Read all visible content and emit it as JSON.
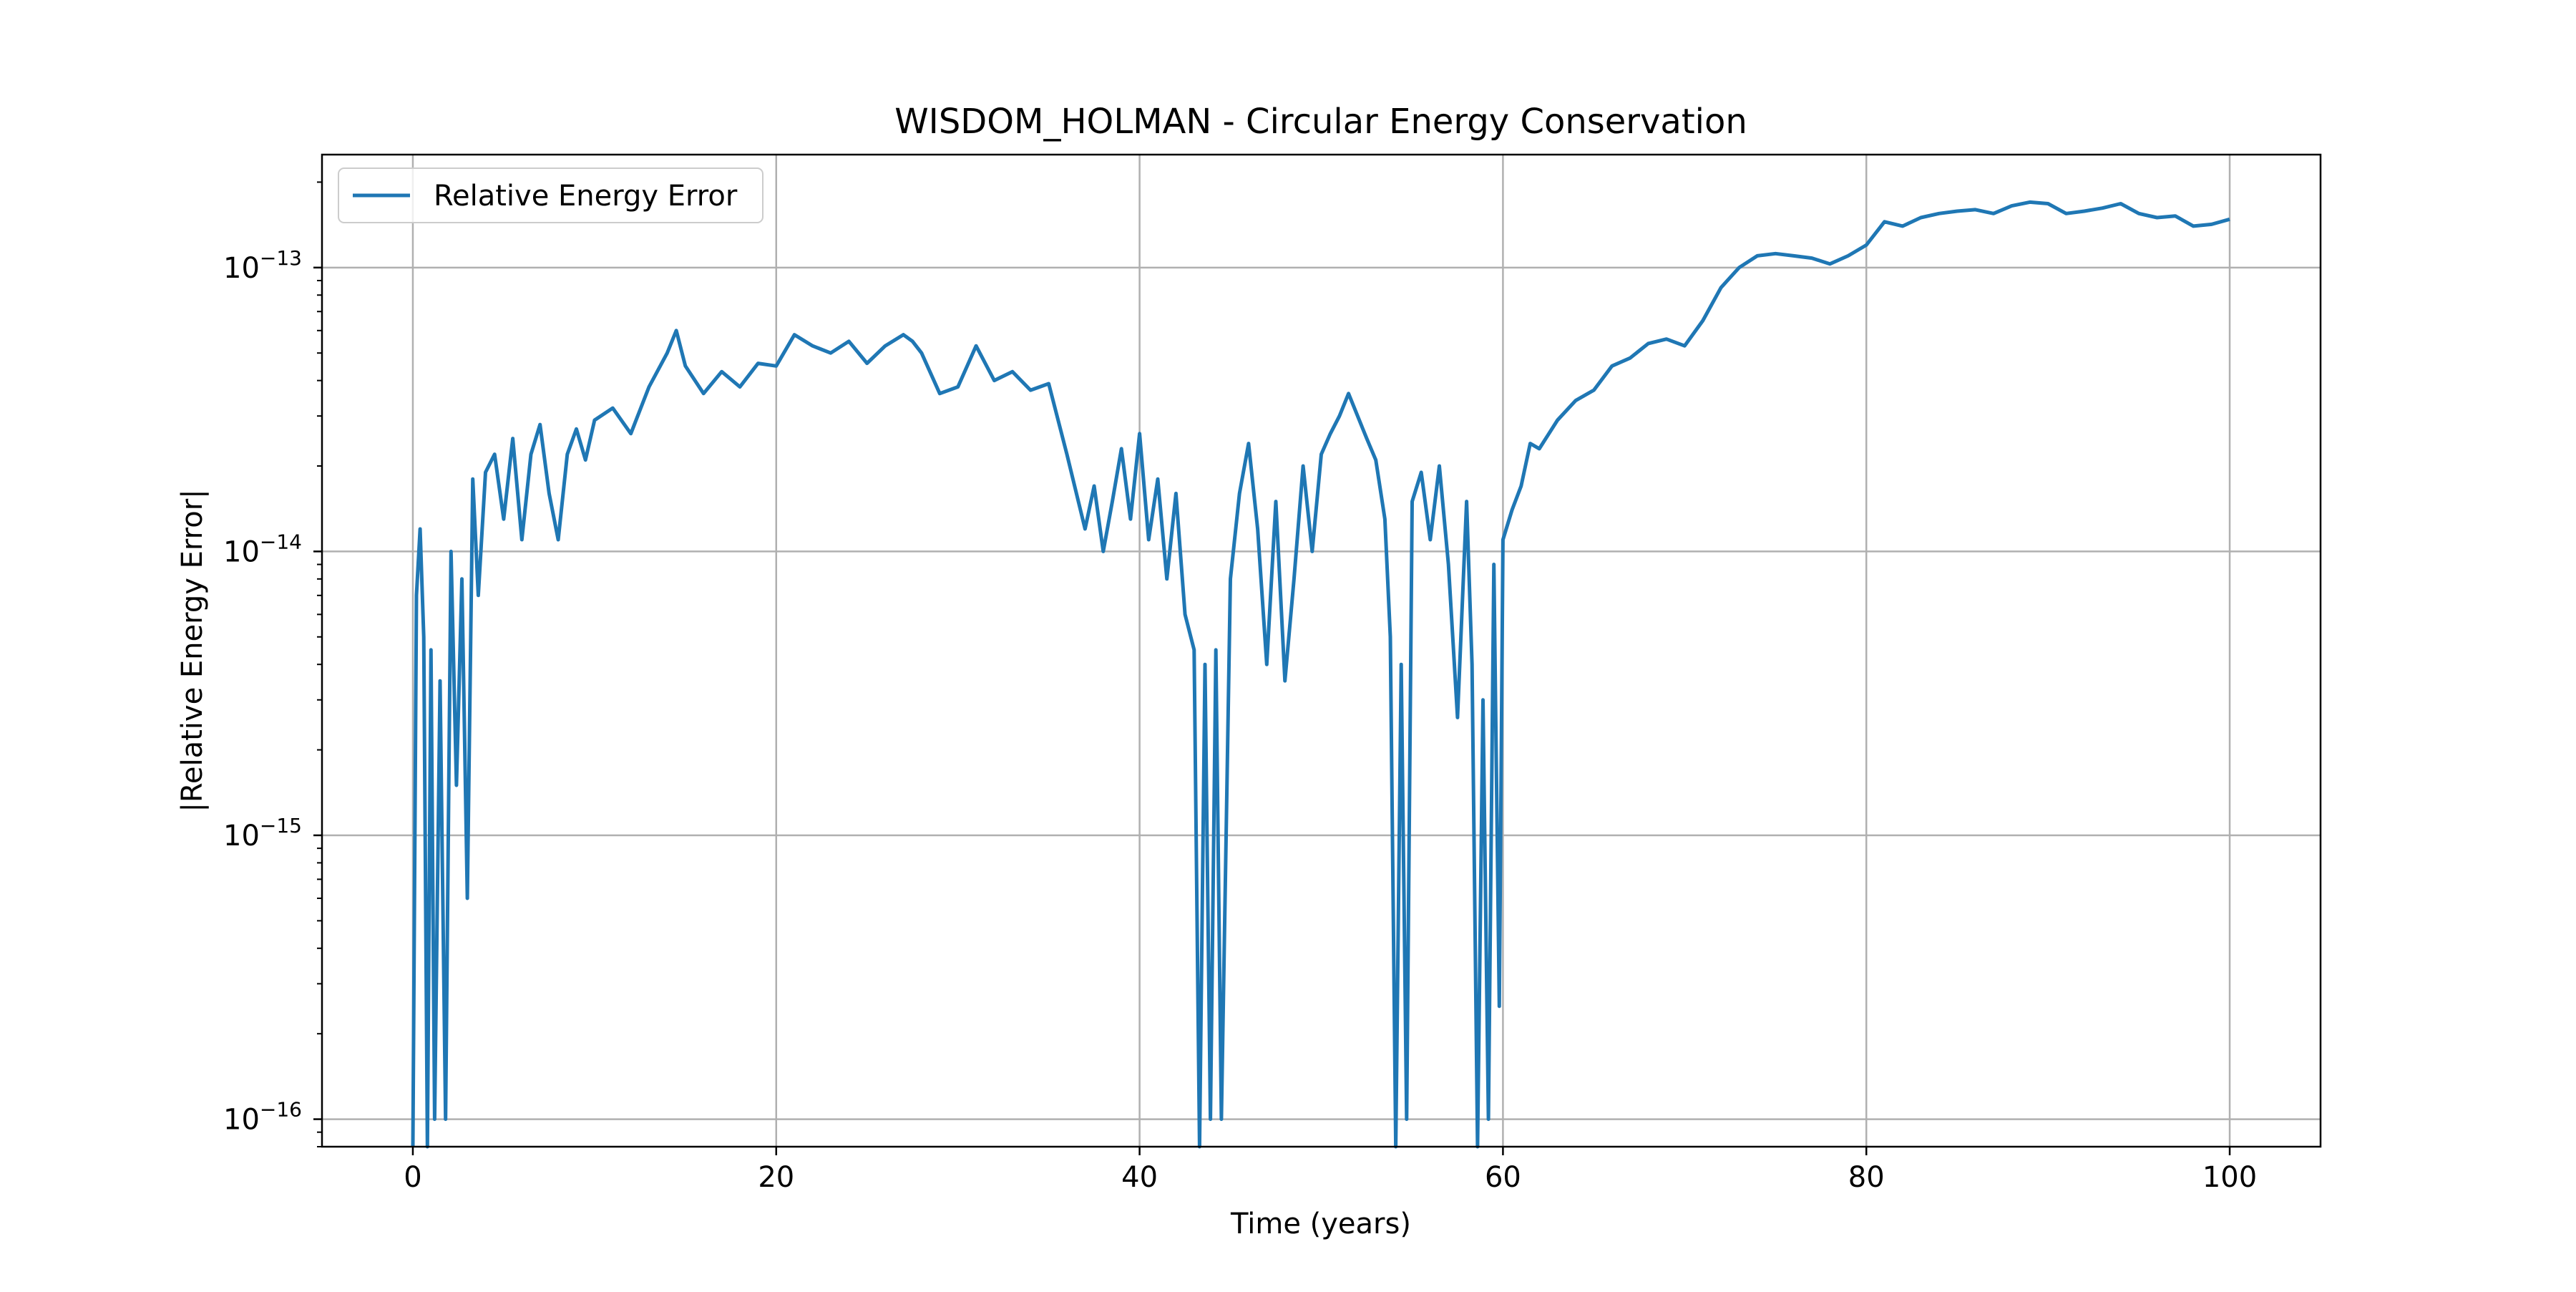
{
  "chart_data": {
    "type": "line",
    "title": "WISDOM_HOLMAN - Circular Energy Conservation",
    "xlabel": "Time (years)",
    "ylabel": "|Relative Energy Error|",
    "xlim": [
      -5,
      105
    ],
    "ylim": [
      8e-17,
      2.5e-13
    ],
    "yscale": "log",
    "grid": true,
    "legend_position": "top-left",
    "x_ticks": [
      {
        "value": 0,
        "label": "0"
      },
      {
        "value": 20,
        "label": "20"
      },
      {
        "value": 40,
        "label": "40"
      },
      {
        "value": 60,
        "label": "60"
      },
      {
        "value": 80,
        "label": "80"
      },
      {
        "value": 100,
        "label": "100"
      }
    ],
    "y_ticks": [
      {
        "value": 1e-16,
        "base": "10",
        "exponent": "−16"
      },
      {
        "value": 1e-15,
        "base": "10",
        "exponent": "−15"
      },
      {
        "value": 1e-14,
        "base": "10",
        "exponent": "−14"
      },
      {
        "value": 1e-13,
        "base": "10",
        "exponent": "−13"
      }
    ],
    "series": [
      {
        "name": "Relative Energy Error",
        "color": "#1f77b4",
        "x": [
          0,
          0.2,
          0.4,
          0.6,
          0.8,
          1.0,
          1.2,
          1.5,
          1.8,
          2.1,
          2.4,
          2.7,
          3.0,
          3.3,
          3.6,
          4.0,
          4.5,
          5.0,
          5.5,
          6.0,
          6.5,
          7.0,
          7.5,
          8.0,
          8.5,
          9.0,
          9.5,
          10.0,
          11.0,
          12.0,
          13.0,
          14.0,
          14.5,
          15.0,
          16.0,
          17.0,
          18.0,
          19.0,
          20.0,
          21.0,
          22.0,
          23.0,
          24.0,
          25.0,
          26.0,
          27.0,
          27.5,
          28.0,
          29.0,
          30.0,
          31.0,
          32.0,
          33.0,
          34.0,
          35.0,
          36.0,
          37.0,
          37.5,
          38.0,
          38.5,
          39.0,
          39.5,
          40.0,
          40.5,
          41.0,
          41.5,
          42.0,
          42.5,
          43.0,
          43.3,
          43.6,
          43.9,
          44.2,
          44.5,
          44.8,
          45.0,
          45.5,
          46.0,
          46.5,
          47.0,
          47.5,
          48.0,
          48.5,
          49.0,
          49.5,
          50.0,
          50.5,
          51.0,
          51.5,
          52.0,
          52.5,
          53.0,
          53.5,
          53.8,
          54.1,
          54.4,
          54.7,
          55.0,
          55.5,
          56.0,
          56.5,
          57.0,
          57.5,
          58.0,
          58.3,
          58.6,
          58.9,
          59.2,
          59.5,
          59.8,
          60.0,
          60.5,
          61.0,
          61.5,
          62.0,
          63.0,
          64.0,
          65.0,
          66.0,
          67.0,
          68.0,
          69.0,
          70.0,
          71.0,
          72.0,
          73.0,
          74.0,
          75.0,
          76.0,
          77.0,
          78.0,
          79.0,
          80.0,
          81.0,
          82.0,
          83.0,
          84.0,
          85.0,
          86.0,
          87.0,
          88.0,
          89.0,
          90.0,
          91.0,
          92.0,
          93.0,
          94.0,
          95.0,
          96.0,
          97.0,
          98.0,
          99.0,
          100.0
        ],
        "y": [
          8e-17,
          7e-15,
          1.2e-14,
          5e-15,
          8e-17,
          4.5e-15,
          1e-16,
          3.5e-15,
          1e-16,
          1e-14,
          1.5e-15,
          8e-15,
          6e-16,
          1.8e-14,
          7e-15,
          1.9e-14,
          2.2e-14,
          1.3e-14,
          2.5e-14,
          1.1e-14,
          2.2e-14,
          2.8e-14,
          1.6e-14,
          1.1e-14,
          2.2e-14,
          2.7e-14,
          2.1e-14,
          2.9e-14,
          3.2e-14,
          2.6e-14,
          3.8e-14,
          5e-14,
          6e-14,
          4.5e-14,
          3.6e-14,
          4.3e-14,
          3.8e-14,
          4.6e-14,
          4.5e-14,
          5.8e-14,
          5.3e-14,
          5e-14,
          5.5e-14,
          4.6e-14,
          5.3e-14,
          5.8e-14,
          5.5e-14,
          5e-14,
          3.6e-14,
          3.8e-14,
          5.3e-14,
          4e-14,
          4.3e-14,
          3.7e-14,
          3.9e-14,
          2.2e-14,
          1.2e-14,
          1.7e-14,
          1e-14,
          1.5e-14,
          2.3e-14,
          1.3e-14,
          2.6e-14,
          1.1e-14,
          1.8e-14,
          8e-15,
          1.6e-14,
          6e-15,
          4.5e-15,
          8e-17,
          4e-15,
          1e-16,
          4.5e-15,
          1e-16,
          1.4e-15,
          8e-15,
          1.6e-14,
          2.4e-14,
          1.2e-14,
          4e-15,
          1.5e-14,
          3.5e-15,
          8e-15,
          2e-14,
          1e-14,
          2.2e-14,
          2.6e-14,
          3e-14,
          3.6e-14,
          3e-14,
          2.5e-14,
          2.1e-14,
          1.3e-14,
          5e-15,
          8e-17,
          4e-15,
          1e-16,
          1.5e-14,
          1.9e-14,
          1.1e-14,
          2e-14,
          9e-15,
          2.6e-15,
          1.5e-14,
          4e-15,
          8e-17,
          3e-15,
          1e-16,
          9e-15,
          2.5e-16,
          1.1e-14,
          1.4e-14,
          1.7e-14,
          2.4e-14,
          2.3e-14,
          2.9e-14,
          3.4e-14,
          3.7e-14,
          4.5e-14,
          4.8e-14,
          5.4e-14,
          5.6e-14,
          5.3e-14,
          6.5e-14,
          8.5e-14,
          1e-13,
          1.1e-13,
          1.12e-13,
          1.1e-13,
          1.08e-13,
          1.03e-13,
          1.1e-13,
          1.2e-13,
          1.45e-13,
          1.4e-13,
          1.5e-13,
          1.55e-13,
          1.58e-13,
          1.6e-13,
          1.55e-13,
          1.65e-13,
          1.7e-13,
          1.68e-13,
          1.55e-13,
          1.58e-13,
          1.62e-13,
          1.68e-13,
          1.55e-13,
          1.5e-13,
          1.52e-13,
          1.4e-13,
          1.42e-13,
          1.48e-13
        ]
      }
    ]
  }
}
